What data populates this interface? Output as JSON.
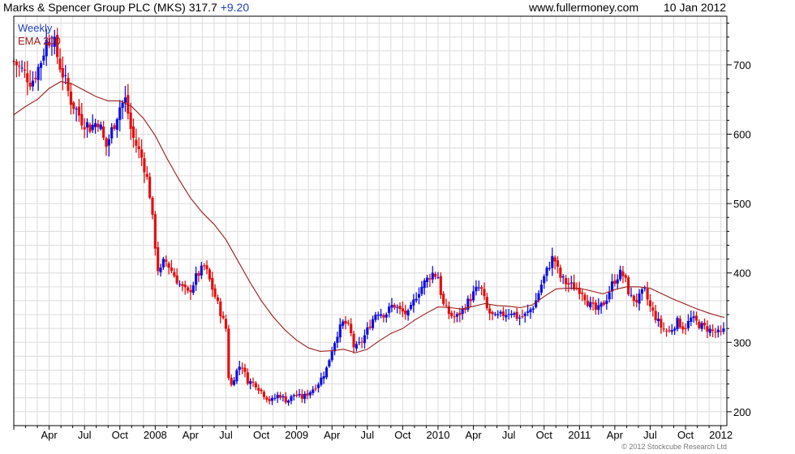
{
  "header": {
    "company": "Marks & Spencer Group PLC (MKS)",
    "price": "317.7",
    "change": "+9.20",
    "website": "www.fullermoney.com",
    "date": "10 Jan 2012"
  },
  "legend": {
    "period": "Weekly",
    "ema_label": "EMA 200"
  },
  "copyright": "© 2012 Stockcube Research Ltd",
  "colors": {
    "up_candle": "#1010e0",
    "down_candle": "#e01010",
    "ema_line": "#9b1b1b",
    "grid": "#dcdcdc",
    "header_blue": "#1f3fbf",
    "ema_legend": "#9b1b1b"
  },
  "chart_data": {
    "type": "candlestick",
    "title": "Marks & Spencer Group PLC (MKS) 317.7 +9.20",
    "period": "weekly",
    "x_range": [
      "2007-01",
      "2012-01"
    ],
    "ylim": [
      180,
      770
    ],
    "y_ticks": [
      200,
      300,
      400,
      500,
      600,
      700
    ],
    "x_tick_labels": [
      {
        "label": "Apr",
        "month": 3
      },
      {
        "label": "Jul",
        "month": 6
      },
      {
        "label": "Oct",
        "month": 9
      },
      {
        "label": "2008",
        "month": 12
      },
      {
        "label": "Apr",
        "month": 15
      },
      {
        "label": "Jul",
        "month": 18
      },
      {
        "label": "Oct",
        "month": 21
      },
      {
        "label": "2009",
        "month": 24
      },
      {
        "label": "Apr",
        "month": 27
      },
      {
        "label": "Jul",
        "month": 30
      },
      {
        "label": "Oct",
        "month": 33
      },
      {
        "label": "2010",
        "month": 36
      },
      {
        "label": "Apr",
        "month": 39
      },
      {
        "label": "Jul",
        "month": 42
      },
      {
        "label": "Oct",
        "month": 45
      },
      {
        "label": "2011",
        "month": 48
      },
      {
        "label": "Apr",
        "month": 51
      },
      {
        "label": "Jul",
        "month": 54
      },
      {
        "label": "Oct",
        "month": 57
      },
      {
        "label": "2012",
        "month": 60
      }
    ],
    "price_path": [
      [
        0.0,
        705
      ],
      [
        0.8,
        690
      ],
      [
        1.5,
        675
      ],
      [
        2.2,
        700
      ],
      [
        2.8,
        735
      ],
      [
        3.3,
        740
      ],
      [
        3.8,
        705
      ],
      [
        4.3,
        680
      ],
      [
        4.8,
        650
      ],
      [
        5.3,
        635
      ],
      [
        5.8,
        620
      ],
      [
        6.5,
        610
      ],
      [
        7.2,
        620
      ],
      [
        7.8,
        580
      ],
      [
        8.4,
        610
      ],
      [
        9.0,
        640
      ],
      [
        9.5,
        650
      ],
      [
        10.0,
        600
      ],
      [
        10.5,
        580
      ],
      [
        11.0,
        560
      ],
      [
        11.5,
        520
      ],
      [
        11.9,
        455
      ],
      [
        12.3,
        395
      ],
      [
        12.8,
        420
      ],
      [
        13.5,
        400
      ],
      [
        14.2,
        380
      ],
      [
        14.8,
        370
      ],
      [
        15.5,
        395
      ],
      [
        16.2,
        410
      ],
      [
        16.8,
        380
      ],
      [
        17.5,
        345
      ],
      [
        18.0,
        320
      ],
      [
        18.3,
        230
      ],
      [
        18.8,
        255
      ],
      [
        19.3,
        270
      ],
      [
        19.8,
        245
      ],
      [
        20.5,
        240
      ],
      [
        21.2,
        225
      ],
      [
        21.8,
        215
      ],
      [
        22.5,
        225
      ],
      [
        23.2,
        215
      ],
      [
        23.8,
        225
      ],
      [
        24.5,
        220
      ],
      [
        25.2,
        230
      ],
      [
        25.8,
        240
      ],
      [
        26.5,
        260
      ],
      [
        27.0,
        290
      ],
      [
        27.5,
        315
      ],
      [
        28.0,
        330
      ],
      [
        28.5,
        320
      ],
      [
        28.9,
        290
      ],
      [
        29.5,
        300
      ],
      [
        30.2,
        325
      ],
      [
        30.8,
        345
      ],
      [
        31.5,
        340
      ],
      [
        32.2,
        355
      ],
      [
        32.8,
        345
      ],
      [
        33.5,
        340
      ],
      [
        34.2,
        370
      ],
      [
        34.8,
        385
      ],
      [
        35.5,
        400
      ],
      [
        36.0,
        395
      ],
      [
        36.4,
        355
      ],
      [
        37.0,
        340
      ],
      [
        37.5,
        335
      ],
      [
        38.0,
        345
      ],
      [
        38.6,
        360
      ],
      [
        39.2,
        375
      ],
      [
        39.6,
        380
      ],
      [
        40.2,
        345
      ],
      [
        40.8,
        335
      ],
      [
        41.5,
        340
      ],
      [
        42.2,
        345
      ],
      [
        42.8,
        335
      ],
      [
        43.5,
        340
      ],
      [
        44.2,
        355
      ],
      [
        44.8,
        385
      ],
      [
        45.4,
        410
      ],
      [
        45.8,
        425
      ],
      [
        46.3,
        395
      ],
      [
        46.9,
        385
      ],
      [
        47.5,
        380
      ],
      [
        48.2,
        375
      ],
      [
        48.8,
        355
      ],
      [
        49.5,
        345
      ],
      [
        50.2,
        360
      ],
      [
        50.8,
        385
      ],
      [
        51.4,
        400
      ],
      [
        51.8,
        395
      ],
      [
        52.3,
        365
      ],
      [
        52.9,
        360
      ],
      [
        53.5,
        375
      ],
      [
        54.0,
        350
      ],
      [
        54.5,
        335
      ],
      [
        55.0,
        320
      ],
      [
        55.6,
        315
      ],
      [
        56.3,
        330
      ],
      [
        56.9,
        320
      ],
      [
        57.5,
        335
      ],
      [
        58.2,
        325
      ],
      [
        58.8,
        320
      ],
      [
        59.4,
        315
      ],
      [
        60.0,
        312
      ],
      [
        60.3,
        318
      ]
    ],
    "series": [
      {
        "name": "EMA 200",
        "type": "line",
        "points": [
          [
            0.0,
            628
          ],
          [
            1.0,
            640
          ],
          [
            2.0,
            650
          ],
          [
            3.0,
            666
          ],
          [
            4.0,
            676
          ],
          [
            5.0,
            672
          ],
          [
            6.0,
            663
          ],
          [
            7.0,
            654
          ],
          [
            8.0,
            648
          ],
          [
            9.0,
            648
          ],
          [
            10.0,
            640
          ],
          [
            11.0,
            623
          ],
          [
            12.0,
            598
          ],
          [
            13.0,
            565
          ],
          [
            14.0,
            535
          ],
          [
            15.0,
            508
          ],
          [
            16.0,
            487
          ],
          [
            17.0,
            470
          ],
          [
            18.0,
            448
          ],
          [
            19.0,
            418
          ],
          [
            20.0,
            388
          ],
          [
            21.0,
            360
          ],
          [
            22.0,
            337
          ],
          [
            23.0,
            318
          ],
          [
            24.0,
            303
          ],
          [
            25.0,
            292
          ],
          [
            26.0,
            287
          ],
          [
            27.0,
            288
          ],
          [
            28.0,
            290
          ],
          [
            29.0,
            285
          ],
          [
            30.0,
            290
          ],
          [
            31.0,
            302
          ],
          [
            32.0,
            313
          ],
          [
            33.0,
            320
          ],
          [
            34.0,
            332
          ],
          [
            35.0,
            342
          ],
          [
            36.0,
            351
          ],
          [
            37.0,
            350
          ],
          [
            38.0,
            348
          ],
          [
            39.0,
            352
          ],
          [
            40.0,
            356
          ],
          [
            41.0,
            353
          ],
          [
            42.0,
            352
          ],
          [
            43.0,
            350
          ],
          [
            44.0,
            354
          ],
          [
            45.0,
            366
          ],
          [
            46.0,
            377
          ],
          [
            47.0,
            378
          ],
          [
            48.0,
            378
          ],
          [
            49.0,
            374
          ],
          [
            50.0,
            370
          ],
          [
            51.0,
            376
          ],
          [
            52.0,
            380
          ],
          [
            53.0,
            380
          ],
          [
            54.0,
            378
          ],
          [
            55.0,
            370
          ],
          [
            56.0,
            362
          ],
          [
            57.0,
            355
          ],
          [
            58.0,
            348
          ],
          [
            59.0,
            342
          ],
          [
            60.0,
            337
          ],
          [
            60.3,
            336
          ]
        ]
      }
    ]
  }
}
